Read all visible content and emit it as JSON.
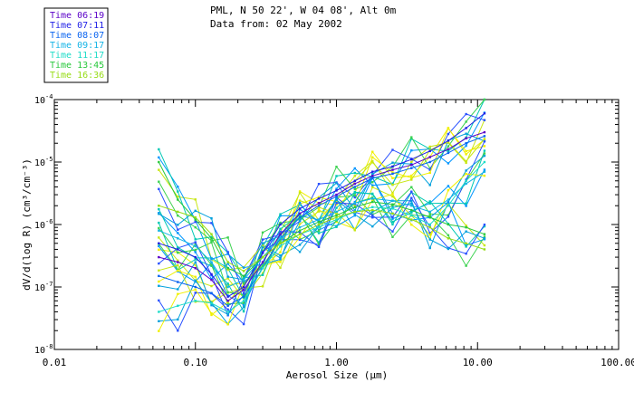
{
  "chart_data": {
    "type": "line",
    "title_line1": "PML, N 50 22', W 04 08', Alt 0m",
    "title_line2": "Data from: 02 May 2002",
    "xlabel": "Aerosol Size (µm)",
    "ylabel": "dV/d(log R) (cm³/cm⁻³)",
    "xscale": "log",
    "yscale": "log",
    "xlim": [
      0.01,
      100
    ],
    "ylim_exponents": [
      -8,
      -4
    ],
    "x_ticks": [
      {
        "value": 0.01,
        "label": "0.01"
      },
      {
        "value": 0.1,
        "label": "0.10"
      },
      {
        "value": 1,
        "label": "1.00"
      },
      {
        "value": 10,
        "label": "10.00"
      },
      {
        "value": 100,
        "label": "100.00"
      }
    ],
    "y_ticks": [
      {
        "exp": -8,
        "label": "10",
        "sup": "-8"
      },
      {
        "exp": -7,
        "label": "10",
        "sup": "-7"
      },
      {
        "exp": -6,
        "label": "10",
        "sup": "-6"
      },
      {
        "exp": -5,
        "label": "10",
        "sup": "-5"
      },
      {
        "exp": -4,
        "label": "10",
        "sup": "-4"
      }
    ],
    "legend_position": "top-left",
    "x": [
      0.055,
      0.075,
      0.1,
      0.13,
      0.17,
      0.22,
      0.3,
      0.4,
      0.55,
      0.75,
      1.0,
      1.35,
      1.8,
      2.5,
      3.4,
      4.6,
      6.2,
      8.3,
      11.2
    ],
    "series": [
      {
        "name": "Time 06:19",
        "color": "#5a00c8",
        "values": [
          3e-07,
          2.5e-07,
          2e-07,
          1.3e-07,
          6e-08,
          9e-08,
          2.5e-07,
          7e-07,
          1.5e-06,
          2.2e-06,
          3e-06,
          4.5e-06,
          6e-06,
          7.5e-06,
          9e-06,
          1.2e-05,
          1.6e-05,
          2.4e-05,
          3e-05
        ]
      },
      {
        "name": "Time 07:11",
        "color": "#1e1ee6",
        "values": [
          5e-07,
          4e-07,
          3e-07,
          1.6e-07,
          7e-08,
          1e-07,
          3.5e-07,
          1e-06,
          1.8e-06,
          2.6e-06,
          3.5e-06,
          5e-06,
          7e-06,
          8.5e-06,
          1.1e-05,
          1.5e-05,
          2.2e-05,
          3.5e-05,
          6e-05
        ]
      },
      {
        "name": "Time 08:07",
        "color": "#0a64f0",
        "values": [
          1.5e-07,
          1.2e-07,
          1e-07,
          8e-08,
          5e-08,
          7e-08,
          2e-07,
          6e-07,
          1.3e-06,
          2e-06,
          2.8e-06,
          4e-06,
          5.5e-06,
          6.5e-06,
          8e-06,
          1e-05,
          1.4e-05,
          2e-05,
          2.6e-05
        ]
      },
      {
        "name": "Time 09:17",
        "color": "#14b4e6",
        "values": [
          8e-07,
          6e-07,
          4.5e-07,
          2.5e-07,
          1e-07,
          1.3e-07,
          3e-07,
          6e-07,
          9e-07,
          1.2e-06,
          1.6e-06,
          2.2e-06,
          2.6e-06,
          2.4e-06,
          2e-06,
          1.6e-06,
          2.5e-06,
          4.5e-06,
          7e-06
        ]
      },
      {
        "name": "Time 11:17",
        "color": "#1edcc8",
        "values": [
          4e-08,
          5e-08,
          6e-08,
          5.5e-08,
          4e-08,
          6e-08,
          2e-07,
          4.5e-07,
          7e-07,
          9e-07,
          1.2e-06,
          1.6e-06,
          1.9e-06,
          1.8e-06,
          1.4e-06,
          1e-06,
          2e-06,
          5e-06,
          1e-05
        ]
      },
      {
        "name": "Time 13:45",
        "color": "#28c83c",
        "values": [
          1e-05,
          2.5e-06,
          1.2e-06,
          6e-07,
          2e-07,
          1.5e-07,
          3e-07,
          5e-07,
          8e-07,
          1.1e-06,
          1.4e-06,
          1.9e-06,
          2.3e-06,
          2.1e-06,
          1.7e-06,
          1.3e-06,
          1e-06,
          9e-07,
          7e-07
        ]
      },
      {
        "name": "Time 16:36",
        "color": "#96dc14",
        "values": [
          2e-06,
          1.6e-06,
          1.3e-06,
          7e-07,
          2.5e-07,
          1.8e-07,
          3e-07,
          5e-07,
          7e-07,
          1e-06,
          1.3e-06,
          1.6e-06,
          1.7e-06,
          1.5e-06,
          1.2e-06,
          9e-07,
          6e-07,
          5e-07,
          4e-07
        ]
      }
    ],
    "extra_series_colors": [
      "#f0f000",
      "#c8e614",
      "#0096ff",
      "#00c8b4",
      "#3cd250",
      "#2850ff",
      "#00a0dc"
    ]
  }
}
